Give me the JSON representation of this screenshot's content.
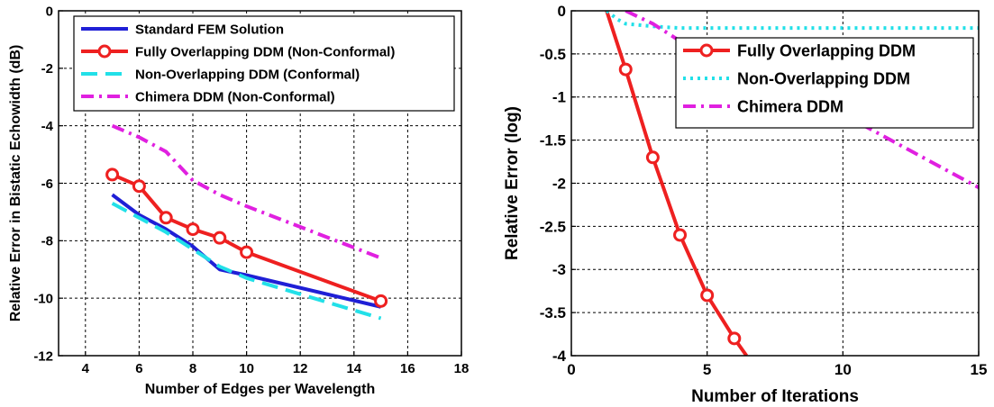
{
  "chart_data": [
    {
      "type": "line",
      "xlabel": "Number of Edges per Wavelength",
      "ylabel": "Relative Error in Bistatic Echowidth (dB)",
      "xlim": [
        3,
        18
      ],
      "ylim": [
        -12,
        0
      ],
      "xticks": [
        4,
        6,
        8,
        10,
        12,
        14,
        16,
        18
      ],
      "yticks": [
        0,
        -2,
        -4,
        -6,
        -8,
        -10,
        -12
      ],
      "grid": true,
      "legend_position": "top-right",
      "series": [
        {
          "name": "Standard FEM Solution",
          "color": "#1f1fd6",
          "style": "solid",
          "marker": "none",
          "x": [
            5,
            6,
            7,
            8,
            9,
            10,
            15
          ],
          "y": [
            -6.4,
            -7.1,
            -7.6,
            -8.2,
            -9.0,
            -9.2,
            -10.3
          ]
        },
        {
          "name": "Fully Overlapping DDM (Non-Conformal)",
          "color": "#ee2020",
          "style": "solid",
          "marker": "circle",
          "x": [
            5,
            6,
            7,
            8,
            9,
            10,
            15
          ],
          "y": [
            -5.7,
            -6.1,
            -7.2,
            -7.6,
            -7.9,
            -8.4,
            -10.1
          ]
        },
        {
          "name": "Non-Overlapping DDM (Conformal)",
          "color": "#22e0e8",
          "style": "dashed",
          "marker": "none",
          "x": [
            5,
            6,
            7,
            8,
            9,
            10,
            15
          ],
          "y": [
            -6.7,
            -7.2,
            -7.7,
            -8.3,
            -8.9,
            -9.3,
            -10.7
          ]
        },
        {
          "name": "Chimera DDM (Non-Conformal)",
          "color": "#e020e0",
          "style": "dashdot",
          "marker": "none",
          "x": [
            5,
            6,
            7,
            8,
            9,
            10,
            15
          ],
          "y": [
            -4.0,
            -4.4,
            -4.9,
            -5.9,
            -6.4,
            -6.8,
            -8.6
          ]
        }
      ]
    },
    {
      "type": "line",
      "xlabel": "Number of Iterations",
      "ylabel": "Relative Error (log)",
      "xlim": [
        0,
        15
      ],
      "ylim": [
        -4,
        0
      ],
      "xticks": [
        0,
        5,
        10,
        15
      ],
      "yticks": [
        0,
        -0.5,
        -1,
        -1.5,
        -2,
        -2.5,
        -3,
        -3.5,
        -4
      ],
      "grid": true,
      "legend_position": "top-right",
      "series": [
        {
          "name": "Fully Overlapping DDM",
          "color": "#ee2020",
          "style": "solid",
          "marker": "circle",
          "x": [
            1.3,
            2,
            3,
            4,
            5,
            6,
            6.45
          ],
          "y": [
            0,
            -0.68,
            -1.7,
            -2.6,
            -3.3,
            -3.8,
            -4.0
          ],
          "marker_x": [
            2,
            3,
            4,
            5,
            6
          ],
          "marker_y": [
            -0.68,
            -1.7,
            -2.6,
            -3.3,
            -3.8
          ]
        },
        {
          "name": "Non-Overlapping DDM",
          "color": "#22e0e8",
          "style": "dotted",
          "marker": "none",
          "x": [
            1.3,
            1.7,
            2,
            3,
            4,
            15
          ],
          "y": [
            0,
            -0.1,
            -0.15,
            -0.18,
            -0.2,
            -0.2
          ]
        },
        {
          "name": "Chimera DDM",
          "color": "#e020e0",
          "style": "dashdot",
          "marker": "none",
          "x": [
            2,
            3,
            4,
            6,
            10,
            15
          ],
          "y": [
            0,
            -0.15,
            -0.35,
            -0.7,
            -1.2,
            -2.05
          ]
        }
      ]
    }
  ]
}
